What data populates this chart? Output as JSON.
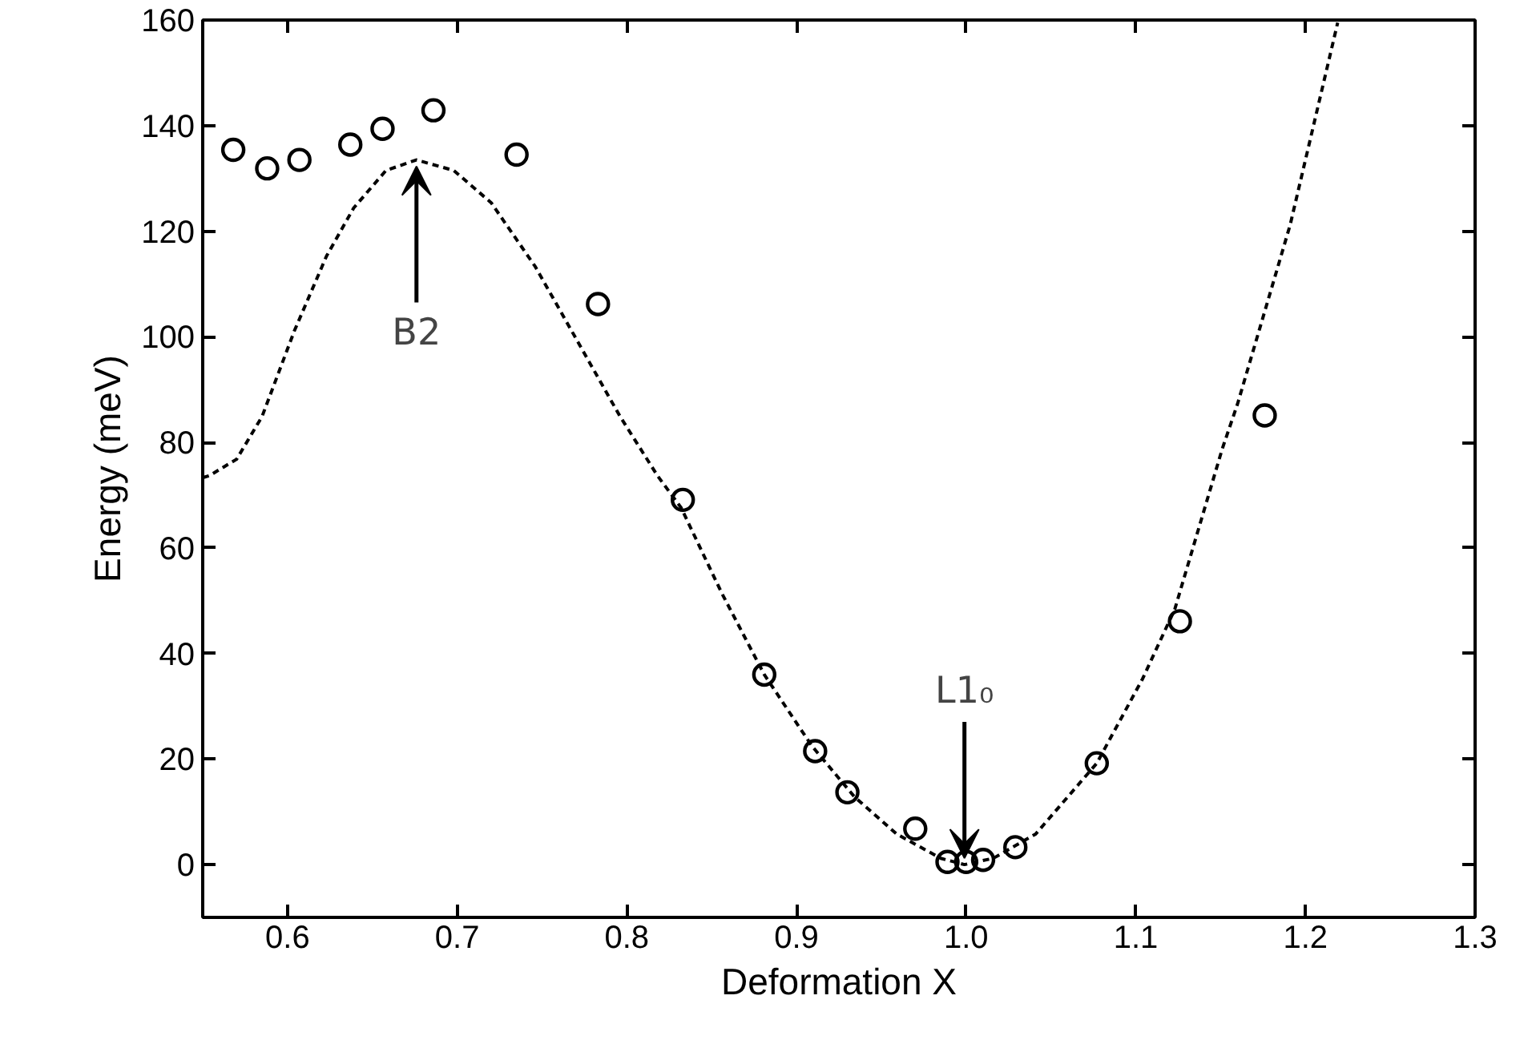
{
  "chart_data": {
    "type": "scatter",
    "xlabel": "Deformation X",
    "ylabel": "Energy (meV)",
    "xlim": [
      0.55,
      1.3
    ],
    "ylim": [
      -10,
      160
    ],
    "xticks": [
      0.6,
      0.7,
      0.8,
      0.9,
      {
        "value": 1.0,
        "label": "1.0"
      },
      1.1,
      1.2,
      1.3
    ],
    "yticks": [
      0,
      20,
      40,
      60,
      80,
      100,
      120,
      140,
      160
    ],
    "grid": false,
    "series": [
      {
        "marker": "circle",
        "color": "#000000",
        "x": [
          0.568,
          0.588,
          0.607,
          0.637,
          0.656,
          0.686,
          0.735,
          0.783,
          0.833,
          0.881,
          0.911,
          0.93,
          0.97,
          0.989,
          1.0,
          1.01,
          1.029,
          1.077,
          1.126,
          1.176
        ],
        "values": [
          135.4,
          131.9,
          133.5,
          136.4,
          139.4,
          142.9,
          134.5,
          106.2,
          69.1,
          36.0,
          21.5,
          13.7,
          6.8,
          0.5,
          0.5,
          0.9,
          3.3,
          19.2,
          46.1,
          85.1
        ]
      },
      {
        "type": "line",
        "marker": "none",
        "line_style": "dashed",
        "color": "#000000",
        "x": [
          0.55,
          0.554,
          0.57,
          0.585,
          0.604,
          0.623,
          0.639,
          0.658,
          0.676,
          0.698,
          0.72,
          0.746,
          0.771,
          0.796,
          0.818,
          0.832,
          0.856,
          0.881,
          0.909,
          0.934,
          0.959,
          0.985,
          0.999,
          1.016,
          1.041,
          1.077,
          1.104,
          1.123,
          1.151,
          1.16,
          1.191,
          1.219
        ],
        "values": [
          73.3,
          73.7,
          76.8,
          84.9,
          101.1,
          115.3,
          124.4,
          131.5,
          133.5,
          131.5,
          125.4,
          113.3,
          99.1,
          84.9,
          73.7,
          67.6,
          51.4,
          36.0,
          22.5,
          12.9,
          5.8,
          1.2,
          0.0,
          1.2,
          5.8,
          19.2,
          35.2,
          48.4,
          78.8,
          87.3,
          121.2,
          159.5
        ]
      }
    ],
    "annotations": [
      {
        "text": "B2",
        "x": 0.676,
        "y": 133.5
      },
      {
        "text": "L1₀",
        "x": 0.999,
        "y": 0.0
      }
    ]
  }
}
